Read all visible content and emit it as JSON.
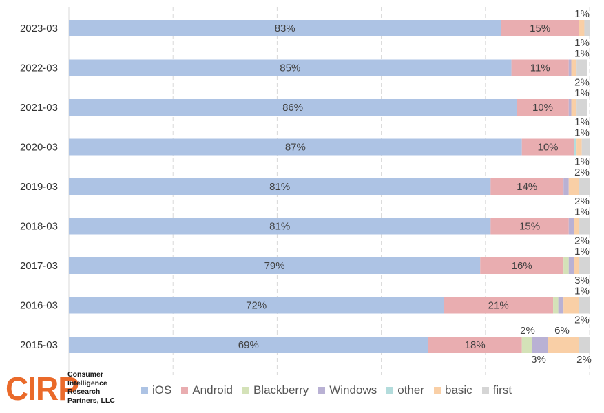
{
  "chart_data": {
    "type": "stacked-bar-horizontal",
    "categories": [
      "2023-03",
      "2022-03",
      "2021-03",
      "2020-03",
      "2019-03",
      "2018-03",
      "2017-03",
      "2016-03",
      "2015-03"
    ],
    "series": [
      {
        "name": "iOS",
        "color": "#adc3e4",
        "values": [
          83,
          85,
          86,
          87,
          81,
          81,
          79,
          72,
          69
        ]
      },
      {
        "name": "Android",
        "color": "#e9adb0",
        "values": [
          15,
          11,
          10,
          10,
          14,
          15,
          16,
          21,
          18
        ]
      },
      {
        "name": "Blackberry",
        "color": "#d4e2b8",
        "values": [
          0,
          0,
          0,
          0,
          0,
          0,
          1,
          1,
          2
        ]
      },
      {
        "name": "Windows",
        "color": "#b9b1d4",
        "values": [
          0,
          0.5,
          0.5,
          0,
          1,
          1,
          1,
          1,
          3
        ]
      },
      {
        "name": "other",
        "color": "#b3dcdc",
        "values": [
          0,
          0,
          0,
          0.5,
          0,
          0,
          0,
          0,
          0
        ]
      },
      {
        "name": "basic",
        "color": "#f9cfa6",
        "values": [
          1,
          1,
          1,
          1,
          2,
          1,
          1,
          3,
          6
        ]
      },
      {
        "name": "first",
        "color": "#d5d5d5",
        "values": [
          1,
          2,
          2,
          1.5,
          2,
          2,
          2,
          2,
          2
        ]
      }
    ],
    "inside_labels": [
      [
        "83%",
        "15%"
      ],
      [
        "85%",
        "11%"
      ],
      [
        "86%",
        "10%"
      ],
      [
        "87%",
        "10%"
      ],
      [
        "81%",
        "14%"
      ],
      [
        "81%",
        "15%"
      ],
      [
        "79%",
        "16%"
      ],
      [
        "72%",
        "21%"
      ],
      [
        "69%",
        "18%"
      ]
    ],
    "outside_labels": [
      {
        "text": "1%",
        "row": 0,
        "pos": "above"
      },
      {
        "text": "1%",
        "row": 0,
        "pos": "below"
      },
      {
        "text": "1%",
        "row": 1,
        "pos": "above"
      },
      {
        "text": "2%",
        "row": 1,
        "pos": "below"
      },
      {
        "text": "1%",
        "row": 2,
        "pos": "above"
      },
      {
        "text": "1%",
        "row": 2,
        "pos": "below"
      },
      {
        "text": "1%",
        "row": 3,
        "pos": "above"
      },
      {
        "text": "1%",
        "row": 3,
        "pos": "below"
      },
      {
        "text": "2%",
        "row": 4,
        "pos": "above"
      },
      {
        "text": "2%",
        "row": 4,
        "pos": "below"
      },
      {
        "text": "1%",
        "row": 5,
        "pos": "above"
      },
      {
        "text": "2%",
        "row": 5,
        "pos": "below"
      },
      {
        "text": "1%",
        "row": 6,
        "pos": "above"
      },
      {
        "text": "3%",
        "row": 6,
        "pos": "below"
      },
      {
        "text": "1%",
        "row": 7,
        "pos": "above"
      },
      {
        "text": "2%",
        "row": 7,
        "pos": "below"
      },
      {
        "text": "2%",
        "row": 8,
        "pos": "above",
        "x": 766
      },
      {
        "text": "6%",
        "row": 8,
        "pos": "above",
        "x": 816
      },
      {
        "text": "3%",
        "row": 8,
        "pos": "below",
        "x": 782
      },
      {
        "text": "2%",
        "row": 8,
        "pos": "below",
        "x": 848
      }
    ],
    "xlim": [
      0,
      100
    ],
    "grid": true,
    "legend": "bottom"
  },
  "logo": {
    "mark": "CIRP",
    "lines": [
      "Consumer",
      "Intelligence",
      "Research",
      "Partners, LLC"
    ]
  }
}
